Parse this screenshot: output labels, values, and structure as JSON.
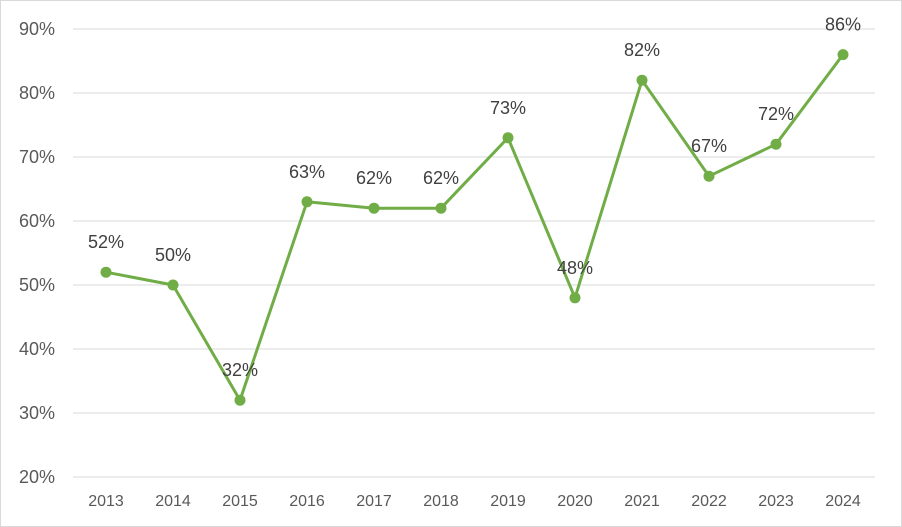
{
  "chart_data": {
    "type": "line",
    "title": "",
    "xlabel": "",
    "ylabel": "",
    "x": [
      "2013",
      "2014",
      "2015",
      "2016",
      "2017",
      "2018",
      "2019",
      "2020",
      "2021",
      "2022",
      "2023",
      "2024"
    ],
    "series": [
      {
        "values": [
          52,
          50,
          32,
          63,
          62,
          62,
          73,
          48,
          82,
          67,
          72,
          86
        ],
        "labels": [
          "52%",
          "50%",
          "32%",
          "63%",
          "62%",
          "62%",
          "73%",
          "48%",
          "82%",
          "67%",
          "72%",
          "86%"
        ],
        "color": "#70ad47"
      }
    ],
    "yticks": [
      {
        "value": 20,
        "label": "20%"
      },
      {
        "value": 30,
        "label": "30%"
      },
      {
        "value": 40,
        "label": "40%"
      },
      {
        "value": 50,
        "label": "50%"
      },
      {
        "value": 60,
        "label": "60%"
      },
      {
        "value": 70,
        "label": "70%"
      },
      {
        "value": 80,
        "label": "80%"
      },
      {
        "value": 90,
        "label": "90%"
      }
    ],
    "ylim": [
      20,
      90
    ],
    "grid": true,
    "legend": "none",
    "gridline_color": "#d9d9d9"
  }
}
